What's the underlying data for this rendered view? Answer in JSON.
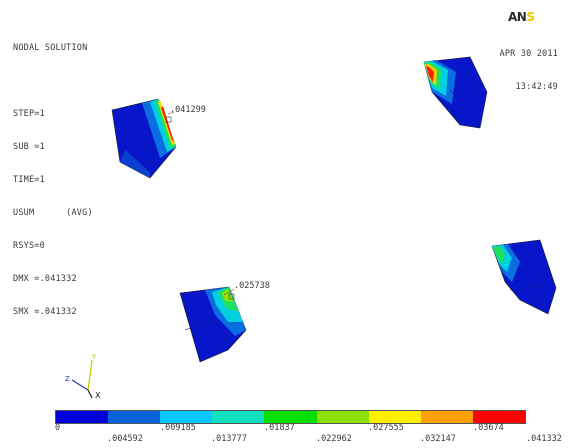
{
  "logo": {
    "part1": "AN",
    "part2": "S"
  },
  "info_lines": [
    "NODAL SOLUTION",
    "",
    "STEP=1",
    "SUB =1",
    "TIME=1",
    "USUM      (AVG)",
    "RSYS=0",
    "DMX =.041332",
    "SMX =.041332"
  ],
  "datetime": {
    "date": "APR 30 2011",
    "time": "13:42:49"
  },
  "annotations": {
    "part_a": ".041299",
    "part_c": ".025738"
  },
  "triad": {
    "y_label": "Y",
    "z_label": "Z",
    "x_label": "X"
  },
  "legend": {
    "colors": [
      "#0000d8",
      "#0a63d8",
      "#00c8ff",
      "#10e0c0",
      "#00e000",
      "#8ce000",
      "#fff000",
      "#ffa000",
      "#ff0000"
    ],
    "labels_top": [
      "0",
      ".009185",
      ".01837",
      ".027555",
      ".03674"
    ],
    "labels_bottom": [
      ".004592",
      ".013777",
      ".022962",
      ".032147",
      ".041332"
    ]
  }
}
